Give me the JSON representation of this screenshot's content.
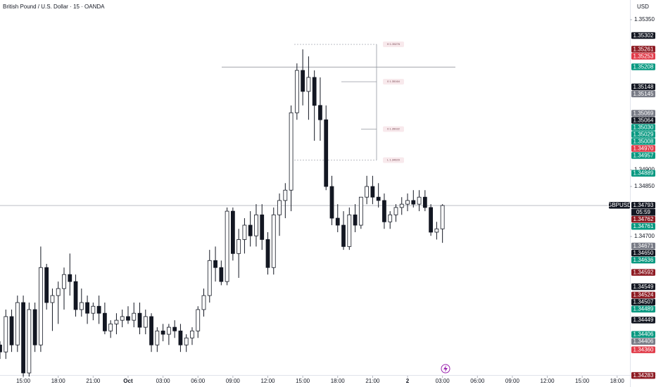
{
  "chart_data": {
    "type": "candlestick",
    "title": "British Pound / U.S. Dollar · 15 · OANDA",
    "currency": "USD",
    "symbol_label": "GBPUSD",
    "countdown": "05:59",
    "up_color": "#ffffff",
    "down_color": "#131722",
    "wick_color": "#131722",
    "x": [
      -4,
      -3,
      -2,
      -1,
      0,
      1,
      2,
      3,
      4,
      5,
      6,
      7,
      8,
      9,
      10,
      11,
      12,
      13,
      14,
      15,
      16,
      17,
      18,
      19,
      20,
      21,
      22,
      23,
      24,
      25,
      26,
      27,
      28,
      29,
      30,
      31,
      32,
      33,
      34,
      35,
      36,
      37,
      38,
      39,
      40,
      41,
      42,
      43,
      44,
      45,
      46,
      47,
      48,
      49,
      50,
      51,
      52,
      53,
      54,
      55,
      56,
      57,
      58,
      59,
      60,
      61,
      62,
      63,
      64,
      65,
      66,
      67,
      68,
      69,
      70,
      71,
      72
    ],
    "open": [
      1.34375,
      1.34354,
      1.3446,
      1.34375,
      1.34502,
      1.34291,
      1.34481,
      1.34375,
      1.34607,
      1.34502,
      1.34523,
      1.34544,
      1.34586,
      1.34565,
      1.34481,
      1.34502,
      1.3447,
      1.34491,
      1.3447,
      1.34417,
      1.34438,
      1.34449,
      1.3446,
      1.34449,
      1.3447,
      1.34428,
      1.3446,
      1.34375,
      1.34417,
      1.34407,
      1.34428,
      1.34417,
      1.34375,
      1.34396,
      1.34417,
      1.34481,
      1.34523,
      1.34628,
      1.34607,
      1.34565,
      1.34776,
      1.34649,
      1.34691,
      1.34734,
      1.34702,
      1.34765,
      1.34691,
      1.34607,
      1.34765,
      1.34808,
      1.34839,
      1.35071,
      1.35198,
      1.35135,
      1.35177,
      1.35093,
      1.3505,
      1.3485,
      1.34755,
      1.34734,
      1.3467,
      1.34765,
      1.34734,
      1.34818,
      1.3485,
      1.34818,
      1.34808,
      1.34744,
      1.34765,
      1.34787,
      1.34797,
      1.34808,
      1.34797,
      1.34818,
      1.34787,
      1.34713,
      1.34723
    ],
    "high": [
      1.34386,
      1.34481,
      1.34481,
      1.34523,
      1.34523,
      1.34502,
      1.34502,
      1.3467,
      1.34618,
      1.34544,
      1.34565,
      1.34607,
      1.34649,
      1.34586,
      1.34544,
      1.34523,
      1.34502,
      1.34523,
      1.34502,
      1.34449,
      1.3447,
      1.34481,
      1.34491,
      1.34502,
      1.34502,
      1.34481,
      1.3447,
      1.34428,
      1.34438,
      1.34438,
      1.34449,
      1.34438,
      1.34407,
      1.34428,
      1.34491,
      1.34544,
      1.3466,
      1.3467,
      1.34628,
      1.34787,
      1.34787,
      1.34723,
      1.34755,
      1.34776,
      1.34797,
      1.34797,
      1.34713,
      1.34787,
      1.34829,
      1.3486,
      1.35093,
      1.35219,
      1.35261,
      1.3524,
      1.35198,
      1.35177,
      1.35093,
      1.34882,
      1.34797,
      1.34776,
      1.34787,
      1.34797,
      1.34818,
      1.34882,
      1.34882,
      1.3486,
      1.34829,
      1.34776,
      1.34797,
      1.34818,
      1.34829,
      1.34839,
      1.34839,
      1.34839,
      1.34797,
      1.34744,
      1.34797
    ],
    "low": [
      1.34333,
      1.34333,
      1.34354,
      1.34354,
      1.3428,
      1.3428,
      1.34354,
      1.34354,
      1.34481,
      1.34417,
      1.34438,
      1.34481,
      1.34523,
      1.3446,
      1.3446,
      1.34438,
      1.34449,
      1.34438,
      1.34407,
      1.34396,
      1.34407,
      1.34428,
      1.34438,
      1.34428,
      1.34407,
      1.34407,
      1.34354,
      1.34354,
      1.34386,
      1.34375,
      1.34396,
      1.34354,
      1.34354,
      1.34375,
      1.34396,
      1.3446,
      1.34502,
      1.34565,
      1.34554,
      1.34554,
      1.34628,
      1.34576,
      1.34649,
      1.3467,
      1.3467,
      1.3466,
      1.34586,
      1.34586,
      1.34702,
      1.34755,
      1.34776,
      1.3505,
      1.35093,
      1.3505,
      1.34987,
      1.34987,
      1.34839,
      1.34734,
      1.34713,
      1.3466,
      1.3466,
      1.34713,
      1.34723,
      1.34797,
      1.34797,
      1.34787,
      1.34723,
      1.34723,
      1.34744,
      1.34765,
      1.34776,
      1.34787,
      1.34776,
      1.34776,
      1.34702,
      1.34691,
      1.34681
    ],
    "close": [
      1.34354,
      1.3446,
      1.34375,
      1.34502,
      1.34291,
      1.34481,
      1.34375,
      1.34607,
      1.34502,
      1.34523,
      1.34544,
      1.34586,
      1.34565,
      1.34481,
      1.34502,
      1.3447,
      1.34491,
      1.3447,
      1.34417,
      1.34438,
      1.34449,
      1.3446,
      1.34449,
      1.3447,
      1.34428,
      1.3446,
      1.34375,
      1.34417,
      1.34407,
      1.34428,
      1.34417,
      1.34375,
      1.34396,
      1.34417,
      1.34481,
      1.34523,
      1.34628,
      1.34607,
      1.34565,
      1.34776,
      1.34649,
      1.34691,
      1.34734,
      1.34702,
      1.34765,
      1.34691,
      1.34607,
      1.34765,
      1.34808,
      1.34839,
      1.35071,
      1.35198,
      1.35135,
      1.35177,
      1.35093,
      1.3505,
      1.3485,
      1.34755,
      1.34734,
      1.3467,
      1.34765,
      1.34734,
      1.34818,
      1.3485,
      1.34818,
      1.34808,
      1.34744,
      1.34765,
      1.34787,
      1.34797,
      1.34808,
      1.34797,
      1.34818,
      1.34787,
      1.34713,
      1.34723,
      1.34793
    ],
    "xlim": [
      -4,
      104.2
    ],
    "xticks": [
      {
        "value": 0,
        "label": "15:00"
      },
      {
        "value": 6,
        "label": "18:00"
      },
      {
        "value": 12,
        "label": "21:00"
      },
      {
        "value": 18,
        "label": "Oct"
      },
      {
        "value": 24,
        "label": "03:00"
      },
      {
        "value": 30,
        "label": "06:00"
      },
      {
        "value": 36,
        "label": "09:00"
      },
      {
        "value": 42,
        "label": "12:00"
      },
      {
        "value": 48,
        "label": "15:00"
      },
      {
        "value": 54,
        "label": "18:00"
      },
      {
        "value": 60,
        "label": "21:00"
      },
      {
        "value": 66,
        "label": "2"
      },
      {
        "value": 72,
        "label": "03:00"
      },
      {
        "value": 78,
        "label": "06:00"
      },
      {
        "value": 84,
        "label": "09:00"
      },
      {
        "value": 90,
        "label": "12:00"
      },
      {
        "value": 96,
        "label": "15:00"
      },
      {
        "value": 102,
        "label": "18:00"
      }
    ],
    "ylim": [
      1.3427,
      1.35409
    ],
    "yticks": [
      {
        "value": 1.3535,
        "label": "1.35350"
      },
      {
        "value": 1.349,
        "label": "1.34900"
      },
      {
        "value": 1.3485,
        "label": "1.34850"
      },
      {
        "value": 1.347,
        "label": "1.34700"
      }
    ],
    "current_price_index": 14,
    "horizontal_line_index": 3,
    "annotations": [
      {
        "value": 1.35276,
        "label": "H 1.35276"
      },
      {
        "value": 1.35164,
        "label": "0 1.35164"
      },
      {
        "value": 1.35022,
        "label": "0 1.35022"
      },
      {
        "value": 1.34929,
        "label": "L 1.34929"
      }
    ],
    "price_labels": [
      {
        "value": 1.35302,
        "label": "1.35302",
        "color": "#131722"
      },
      {
        "value": 1.35261,
        "label": "1.35261",
        "color": "#8e1b23"
      },
      {
        "value": 1.35253,
        "label": "1.35253",
        "color": "#e13c4a"
      },
      {
        "value": 1.35208,
        "label": "1.35208",
        "color": "#089981"
      },
      {
        "value": 1.35148,
        "label": "1.35148",
        "color": "#131722"
      },
      {
        "value": 1.35145,
        "label": "1.35145",
        "color": "#787b86"
      },
      {
        "value": 1.35069,
        "label": "1.35069",
        "color": "#787b86"
      },
      {
        "value": 1.35064,
        "label": "1.35064",
        "color": "#131722"
      },
      {
        "value": 1.3503,
        "label": "1.35030",
        "color": "#089981"
      },
      {
        "value": 1.35029,
        "label": "1.35029",
        "color": "#089981"
      },
      {
        "value": 1.35008,
        "label": "1.35008",
        "color": "#089981"
      },
      {
        "value": 1.3497,
        "label": "1.34970",
        "color": "#e13c4a"
      },
      {
        "value": 1.34957,
        "label": "1.34957",
        "color": "#089981"
      },
      {
        "value": 1.34889,
        "label": "1.34889",
        "color": "#089981"
      },
      {
        "value": 1.34793,
        "label": "1.34793",
        "color": "#131722"
      },
      {
        "value": 1.34762,
        "label": "1.34762",
        "color": "#8e1b23"
      },
      {
        "value": 1.34761,
        "label": "1.34761",
        "color": "#089981"
      },
      {
        "value": 1.34671,
        "label": "1.34671",
        "color": "#787b86"
      },
      {
        "value": 1.3465,
        "label": "1.34650",
        "color": "#131722"
      },
      {
        "value": 1.34636,
        "label": "1.34636",
        "color": "#089981"
      },
      {
        "value": 1.34592,
        "label": "1.34592",
        "color": "#8e1b23"
      },
      {
        "value": 1.34549,
        "label": "1.34549",
        "color": "#131722"
      },
      {
        "value": 1.34524,
        "label": "1.34524",
        "color": "#8e1b23"
      },
      {
        "value": 1.34507,
        "label": "1.34507",
        "color": "#131722"
      },
      {
        "value": 1.34489,
        "label": "1.34489",
        "color": "#089981"
      },
      {
        "value": 1.34449,
        "label": "1.34449",
        "color": "#131722"
      },
      {
        "value": 1.34406,
        "label": "1.34406",
        "color": "#089981"
      },
      {
        "value": 1.34406,
        "label": "1.34406",
        "color": "#787b86"
      },
      {
        "value": 1.3436,
        "label": "1.34360",
        "color": "#e13c4a"
      },
      {
        "value": 1.34283,
        "label": "1.34283",
        "color": "#8e1b23"
      }
    ]
  }
}
